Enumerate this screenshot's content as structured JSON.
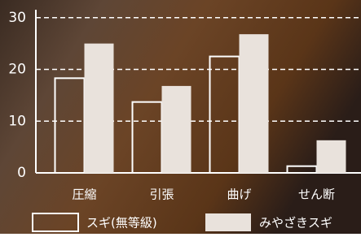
{
  "chart_data": {
    "type": "bar",
    "categories": [
      "圧縮",
      "引張",
      "曲げ",
      "せん断"
    ],
    "series": [
      {
        "name": "スギ(無等級)",
        "color": "#ffffff",
        "filled": false,
        "values": [
          18.3,
          13.7,
          22.5,
          1.3
        ]
      },
      {
        "name": "みやざきスギ",
        "color": "#e9e2dc",
        "filled": true,
        "values": [
          25,
          16.8,
          26.8,
          6.3
        ]
      }
    ],
    "ylim": [
      0,
      32
    ],
    "yticks": [
      0,
      10,
      20,
      30
    ],
    "grid": true,
    "legend": "bottom"
  }
}
